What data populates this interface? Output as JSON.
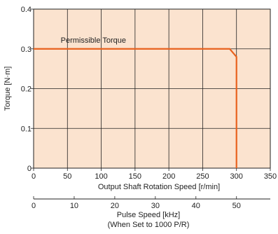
{
  "chart_data": {
    "type": "line",
    "xlabel": "Output Shaft Rotation Speed [r/min]",
    "ylabel": "Torque [N·m]",
    "xlim": [
      0,
      350
    ],
    "ylim": [
      0,
      0.4
    ],
    "x_ticks": [
      "0",
      "50",
      "100",
      "150",
      "200",
      "250",
      "300",
      "350"
    ],
    "y_ticks": [
      "0",
      "0.1",
      "0.2",
      "0.3",
      "0.4"
    ],
    "grid": true,
    "plot_background": "#fbe3cf",
    "line_color": "#e8621e",
    "annotation": "Permissible Torque",
    "series": [
      {
        "name": "",
        "x": [
          0,
          290,
          300,
          300
        ],
        "y": [
          0.3,
          0.3,
          0.28,
          0
        ]
      }
    ],
    "secondary_x_axis": {
      "label_line1": "Pulse Speed [kHz]",
      "label_line2": "(When Set to 1000 P/R)",
      "range": [
        0,
        58.33
      ],
      "ticks": [
        "0",
        "10",
        "20",
        "30",
        "40",
        "50"
      ]
    }
  }
}
